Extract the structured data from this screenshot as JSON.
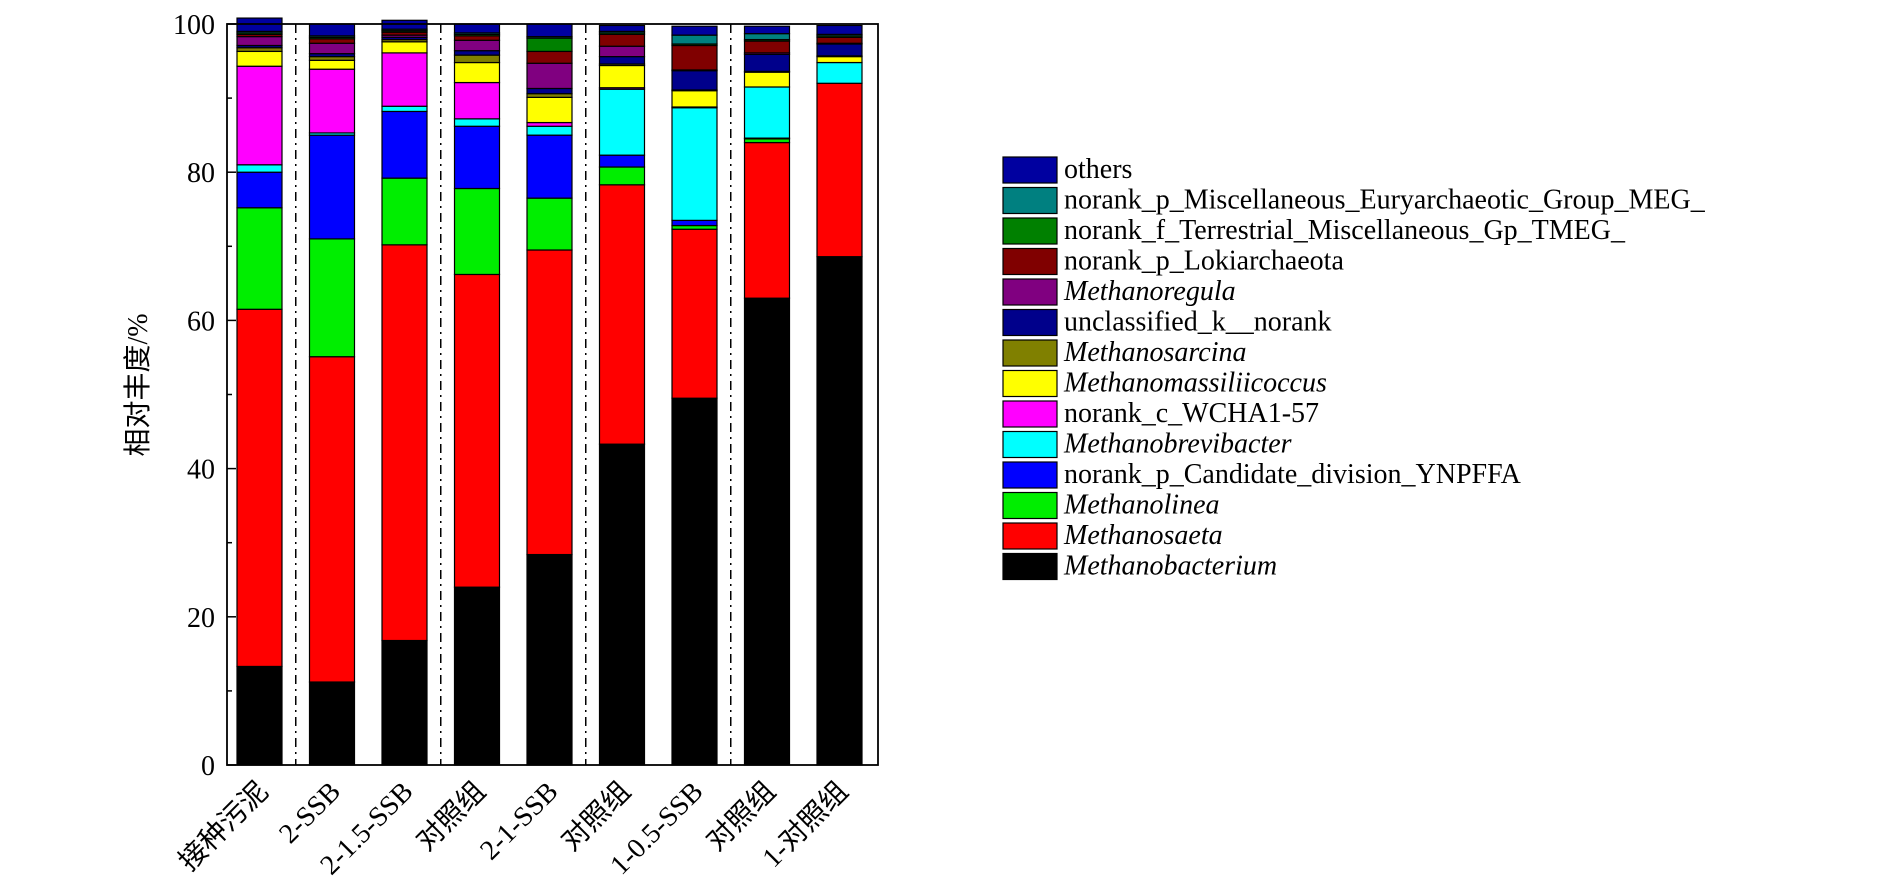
{
  "chart_data": {
    "type": "bar",
    "stacked": true,
    "title": "",
    "xlabel": "",
    "ylabel": "相对丰度/%",
    "ylim": [
      0,
      100
    ],
    "yticks": [
      0,
      20,
      40,
      60,
      80,
      100
    ],
    "grid": false,
    "legend_position": "right",
    "categories": [
      "接种污泥",
      "2-SSB",
      "2-1.5-SSB",
      "对照组",
      "2-1-SSB",
      "对照组",
      "1-0.5-SSB",
      "对照组",
      "1-对照组"
    ],
    "separators_after_category_index": [
      0,
      2,
      4,
      6
    ],
    "series": [
      {
        "name": "Methanobacterium",
        "italic": true,
        "color": "#000000",
        "values": [
          13.3,
          11.2,
          16.8,
          24.0,
          28.4,
          43.3,
          49.5,
          63.0,
          68.6
        ]
      },
      {
        "name": "Methanosaeta",
        "italic": true,
        "color": "#FF0000",
        "values": [
          48.2,
          43.9,
          53.4,
          42.2,
          41.1,
          35.0,
          22.8,
          21.0,
          23.4
        ]
      },
      {
        "name": "Methanolinea",
        "italic": true,
        "color": "#00EE00",
        "values": [
          13.7,
          15.9,
          9.0,
          11.6,
          7.0,
          2.4,
          0.5,
          0.5,
          0.0
        ]
      },
      {
        "name": "norank_p_Candidate_division_YNPFFA",
        "italic": false,
        "color": "#0000FF",
        "values": [
          4.8,
          14.0,
          9.0,
          8.4,
          8.5,
          1.6,
          0.7,
          0.1,
          0.0
        ]
      },
      {
        "name": "Methanobrevibacter",
        "italic": true,
        "color": "#00FFFF",
        "values": [
          1.0,
          0.3,
          0.7,
          1.0,
          1.2,
          8.9,
          15.2,
          6.9,
          2.8
        ]
      },
      {
        "name": "norank_c_WCHA1-57",
        "italic": false,
        "color": "#FF00FF",
        "values": [
          13.3,
          8.6,
          7.2,
          4.9,
          0.5,
          0.2,
          0.1,
          0.0,
          0.0
        ]
      },
      {
        "name": "Methanomassiliicoccus",
        "italic": true,
        "color": "#FFFF00",
        "values": [
          2.0,
          1.2,
          1.5,
          2.7,
          3.4,
          3.0,
          2.2,
          2.0,
          0.8
        ]
      },
      {
        "name": "Methanosarcina",
        "italic": true,
        "color": "#808000",
        "values": [
          0.5,
          0.5,
          0.3,
          1.0,
          0.5,
          0.2,
          0.1,
          0.1,
          0.1
        ]
      },
      {
        "name": "unclassified_k__norank",
        "italic": false,
        "color": "#00008B",
        "values": [
          0.3,
          0.4,
          0.3,
          0.6,
          0.7,
          1.0,
          2.6,
          2.3,
          1.6
        ]
      },
      {
        "name": "Methanoregula",
        "italic": true,
        "color": "#800080",
        "values": [
          1.2,
          1.4,
          0.3,
          1.4,
          3.4,
          1.4,
          0.1,
          0.2,
          0.1
        ]
      },
      {
        "name": "norank_p_Lokiarchaeota",
        "italic": false,
        "color": "#800000",
        "values": [
          0.3,
          0.6,
          0.4,
          0.6,
          1.6,
          1.6,
          3.3,
          1.6,
          0.8
        ]
      },
      {
        "name": "norank_f_Terrestrial_Miscellaneous_Gp_TMEG_",
        "italic": false,
        "color": "#008000",
        "values": [
          0.2,
          0.2,
          0.2,
          0.2,
          1.8,
          0.2,
          0.2,
          0.2,
          0.2
        ]
      },
      {
        "name": "norank_p_Miscellaneous_Euryarchaeotic_Group_MEG_",
        "italic": false,
        "color": "#008080",
        "values": [
          0.2,
          0.2,
          0.2,
          0.2,
          0.2,
          0.2,
          1.2,
          0.8,
          0.2
        ]
      },
      {
        "name": "others",
        "italic": false,
        "color": "#0000A0",
        "values": [
          1.8,
          1.6,
          1.2,
          1.2,
          1.7,
          0.8,
          1.2,
          1.0,
          1.2
        ]
      }
    ]
  }
}
